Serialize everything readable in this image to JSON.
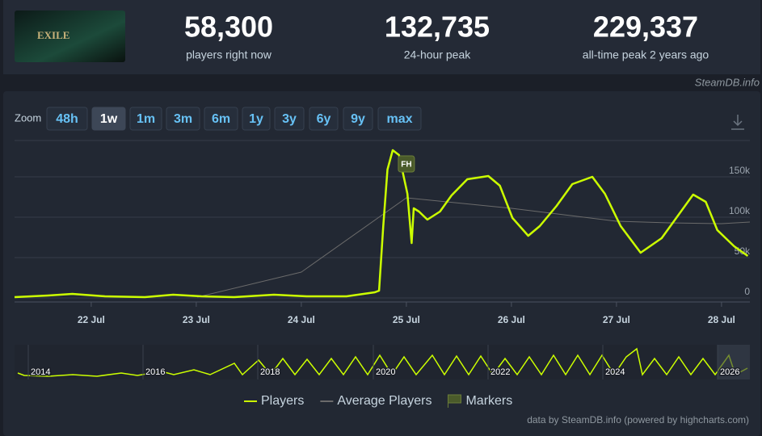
{
  "header": {
    "stats": [
      {
        "value": "58,300",
        "label": "players right now"
      },
      {
        "value": "132,735",
        "label": "24-hour peak"
      },
      {
        "value": "229,337",
        "label": "all-time peak 2 years ago"
      }
    ],
    "source": "SteamDB.info"
  },
  "zoom": {
    "label": "Zoom",
    "buttons": [
      "48h",
      "1w",
      "1m",
      "3m",
      "6m",
      "1y",
      "3y",
      "6y",
      "9y",
      "max"
    ],
    "active": "1w"
  },
  "chart_data": {
    "type": "line",
    "xlim": [
      21.27,
      28.27
    ],
    "xticks": [
      {
        "value": 22,
        "label": "22 Jul"
      },
      {
        "value": 23,
        "label": "23 Jul"
      },
      {
        "value": 24,
        "label": "24 Jul"
      },
      {
        "value": 25,
        "label": "25 Jul"
      },
      {
        "value": 26,
        "label": "26 Jul"
      },
      {
        "value": 27,
        "label": "27 Jul"
      },
      {
        "value": 28,
        "label": "28 Jul"
      }
    ],
    "ylim": [
      0,
      195000
    ],
    "yticks": [
      0,
      {
        "value": 50000,
        "label": "50k"
      },
      {
        "value": 100000,
        "label": "100k"
      },
      {
        "value": 150000,
        "label": "150k"
      }
    ],
    "grid": true,
    "series": [
      {
        "name": "Players",
        "color": "#ccff00",
        "x": [
          21.27,
          21.59,
          21.82,
          22.13,
          22.51,
          22.78,
          23.05,
          23.36,
          23.74,
          24.05,
          24.43,
          24.7,
          24.74,
          24.78,
          24.82,
          24.87,
          24.93,
          25.01,
          25.05,
          25.07,
          25.12,
          25.2,
          25.32,
          25.43,
          25.58,
          25.78,
          25.89,
          26.01,
          26.16,
          26.27,
          26.43,
          26.58,
          26.77,
          26.89,
          27.04,
          27.23,
          27.43,
          27.58,
          27.73,
          27.85,
          27.96,
          28.12,
          28.25
        ],
        "values": [
          1000,
          3000,
          5000,
          2000,
          1000,
          4000,
          2000,
          1000,
          4000,
          2000,
          2000,
          7000,
          9000,
          89000,
          159000,
          183000,
          177000,
          129000,
          68000,
          111000,
          107000,
          97000,
          107000,
          127000,
          147000,
          151000,
          139000,
          99000,
          77000,
          89000,
          114000,
          141000,
          150000,
          129000,
          89000,
          56000,
          74000,
          101000,
          128000,
          119000,
          84000,
          64000,
          52000
        ]
      },
      {
        "name": "Average Players",
        "color": "#6b6b6b",
        "x": [
          23.01,
          24.0,
          25.0,
          26.0,
          27.0,
          27.5,
          28.0,
          28.27
        ],
        "values": [
          1000,
          32000,
          124000,
          111000,
          95000,
          93000,
          92000,
          94000
        ]
      }
    ],
    "markers": [
      {
        "x": 25.0,
        "label": "FH"
      }
    ],
    "marker_legend": "Markers"
  },
  "navigator": {
    "labels": [
      "2014",
      "2016",
      "2018",
      "2020",
      "2022",
      "2024",
      "2026"
    ]
  },
  "credit": "data by SteamDB.info (powered by highcharts.com)"
}
